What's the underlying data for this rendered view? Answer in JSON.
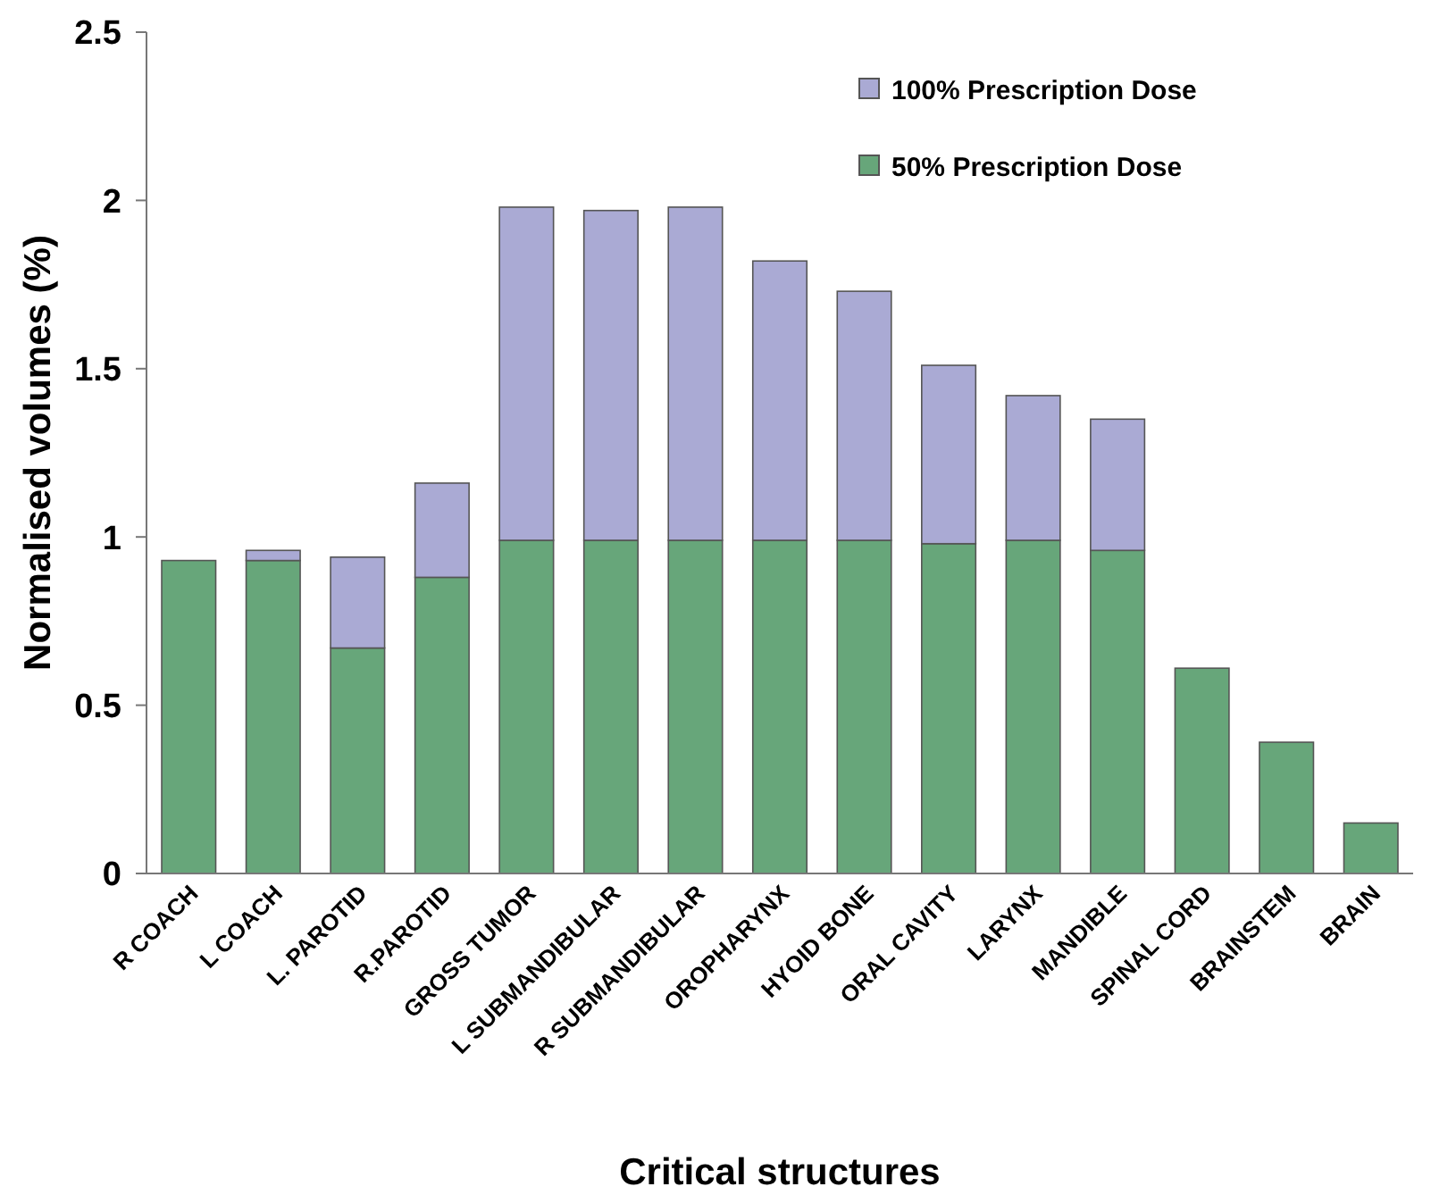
{
  "chart_data": {
    "type": "bar",
    "stacked": true,
    "xlabel": "Critical structures",
    "ylabel": "Normalised volumes (%)",
    "categories": [
      "R COACH",
      "L COACH",
      "L. PAROTID",
      "R.PAROTID",
      "GROSS TUMOR",
      "L SUBMANDIBULAR",
      "R SUBMANDIBULAR",
      "OROPHARYNX",
      "HYOID BONE",
      "ORAL CAVITY",
      "LARYNX",
      "MANDIBLE",
      "SPINAL CORD",
      "BRAINSTEM",
      "BRAIN"
    ],
    "series": [
      {
        "name": "50% Prescription Dose",
        "color": "#67a67a",
        "values": [
          0.93,
          0.93,
          0.67,
          0.88,
          0.99,
          0.99,
          0.99,
          0.99,
          0.99,
          0.98,
          0.99,
          0.96,
          0.61,
          0.39,
          0.15
        ]
      },
      {
        "name": "100% Prescription Dose",
        "color": "#aaaad4",
        "values": [
          null,
          0.03,
          0.27,
          0.28,
          0.99,
          0.98,
          0.99,
          0.83,
          0.74,
          0.53,
          0.43,
          0.39,
          null,
          null,
          null
        ]
      }
    ],
    "ylim": [
      0,
      2.5
    ],
    "yticks": [
      0,
      0.5,
      1,
      1.5,
      2,
      2.5
    ],
    "legend": "top right"
  }
}
